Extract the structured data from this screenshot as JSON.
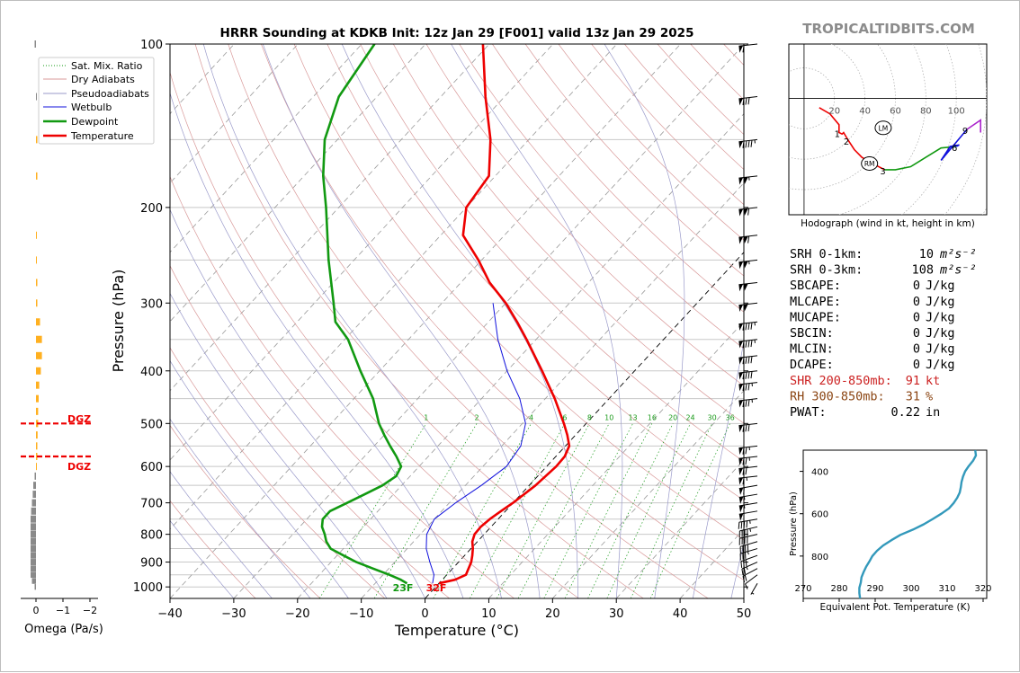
{
  "title": "HRRR Sounding at KDKB Init: 12z Jan 29 [F001] valid 13z Jan 29 2025",
  "watermark": "TROPICALTIDBITS.COM",
  "legend": [
    "Sat. Mix. Ratio",
    "Dry Adiabats",
    "Pseudoadiabats",
    "Wetbulb",
    "Dewpoint",
    "Temperature"
  ],
  "colors": {
    "temperature": "#ee0000",
    "dewpoint": "#119911",
    "wetbulb": "#1010dd",
    "omega_up": "#ffb020",
    "omega_down": "#8a8a8a",
    "theta_e": "#3399bb",
    "watermark": "#8c8c8c"
  },
  "surface_dewpoint_label": "23F",
  "surface_temp_label": "32F",
  "dgz_label": "DGZ",
  "omega_label": "Omega (Pa/s)",
  "omega_ticks": [
    "0",
    "−1",
    "−2"
  ],
  "hodograph": {
    "caption": "Hodograph (wind in kt, height in km)",
    "ring_labels": [
      "20",
      "40",
      "60",
      "80",
      "100"
    ],
    "height_labels": [
      "1",
      "2",
      "3",
      "6",
      "9"
    ],
    "lm_label": "LM",
    "rm_label": "RM"
  },
  "stats": [
    {
      "label": "SRH 0-1km:",
      "value": "10",
      "unit": "m²s⁻²",
      "color": "#000000"
    },
    {
      "label": "SRH 0-3km:",
      "value": "108",
      "unit": "m²s⁻²",
      "color": "#000000"
    },
    {
      "label": "SBCAPE:",
      "value": "0",
      "unit": "J/kg",
      "color": "#000000"
    },
    {
      "label": "MLCAPE:",
      "value": "0",
      "unit": "J/kg",
      "color": "#000000"
    },
    {
      "label": "MUCAPE:",
      "value": "0",
      "unit": "J/kg",
      "color": "#000000"
    },
    {
      "label": "SBCIN:",
      "value": "0",
      "unit": "J/kg",
      "color": "#000000"
    },
    {
      "label": "MLCIN:",
      "value": "0",
      "unit": "J/kg",
      "color": "#000000"
    },
    {
      "label": "DCAPE:",
      "value": "0",
      "unit": "J/kg",
      "color": "#000000"
    },
    {
      "label": "SHR 200-850mb:",
      "value": "91",
      "unit": "kt",
      "color": "#cc2222"
    },
    {
      "label": "RH 300-850mb:",
      "value": "31",
      "unit": "%",
      "color": "#8b4513"
    },
    {
      "label": "PWAT:",
      "value": "0.22",
      "unit": "in",
      "color": "#000000"
    }
  ],
  "chart_data": [
    {
      "type": "line",
      "name": "skew-t",
      "xlabel": "Temperature (°C)",
      "ylabel": "Pressure (hPa)",
      "xlim": [
        -40,
        50
      ],
      "ylim": [
        1050,
        100
      ],
      "x_ticks": [
        "−40",
        "−30",
        "−20",
        "−10",
        "0",
        "10",
        "20",
        "30",
        "40",
        "50"
      ],
      "y_ticks": [
        "100",
        "200",
        "300",
        "400",
        "500",
        "600",
        "700",
        "800",
        "900",
        "1000"
      ],
      "mixing_ratio_labels": [
        "1",
        "2",
        "4",
        "6",
        "8",
        "10",
        "13",
        "16",
        "20",
        "24",
        "30",
        "36"
      ],
      "series": [
        {
          "name": "Temperature",
          "p": [
            985,
            970,
            950,
            925,
            900,
            875,
            850,
            825,
            800,
            775,
            750,
            725,
            700,
            650,
            600,
            575,
            550,
            525,
            500,
            450,
            400,
            350,
            325,
            300,
            275,
            250,
            225,
            200,
            175,
            150,
            125,
            100
          ],
          "t": [
            0.0,
            2.0,
            3.0,
            2.5,
            2.0,
            1.2,
            0.3,
            -0.8,
            -1.5,
            -1.6,
            -1.3,
            -0.7,
            0.0,
            1.0,
            1.5,
            1.4,
            0.6,
            -1.3,
            -3.5,
            -8.5,
            -14.5,
            -21.5,
            -25.5,
            -30.0,
            -35.5,
            -40.5,
            -46.5,
            -50.0,
            -51.0,
            -56.0,
            -63.0,
            -71.0
          ]
        },
        {
          "name": "Dewpoint",
          "p": [
            985,
            970,
            950,
            925,
            900,
            875,
            850,
            825,
            800,
            775,
            750,
            725,
            700,
            675,
            650,
            625,
            600,
            575,
            550,
            525,
            500,
            450,
            400,
            350,
            325,
            300,
            250,
            200,
            175,
            150,
            125,
            100
          ],
          "t": [
            -5.0,
            -6.5,
            -9.0,
            -12.5,
            -16.0,
            -19.0,
            -22.0,
            -23.7,
            -25.0,
            -26.5,
            -27.5,
            -27.5,
            -26.0,
            -24.5,
            -23.0,
            -22.2,
            -22.8,
            -25.0,
            -27.5,
            -30.0,
            -32.5,
            -37.0,
            -43.0,
            -49.5,
            -54.0,
            -57.0,
            -64.0,
            -72.0,
            -77.0,
            -82.0,
            -86.0,
            -88.0
          ]
        },
        {
          "name": "Wetbulb",
          "p": [
            985,
            950,
            900,
            850,
            800,
            750,
            700,
            650,
            600,
            550,
            500,
            450,
            400,
            350,
            300
          ],
          "t": [
            -1.0,
            -2.0,
            -4.5,
            -7.0,
            -9.0,
            -10.0,
            -9.0,
            -7.5,
            -6.3,
            -7.0,
            -9.5,
            -14.0,
            -20.0,
            -26.0,
            -32.0
          ]
        }
      ],
      "wind_barbs": [
        {
          "p": 985,
          "dir": 200,
          "spd": 5
        },
        {
          "p": 950,
          "dir": 220,
          "spd": 10
        },
        {
          "p": 925,
          "dir": 230,
          "spd": 20
        },
        {
          "p": 900,
          "dir": 235,
          "spd": 25
        },
        {
          "p": 875,
          "dir": 240,
          "spd": 30
        },
        {
          "p": 850,
          "dir": 245,
          "spd": 35
        },
        {
          "p": 825,
          "dir": 245,
          "spd": 40
        },
        {
          "p": 800,
          "dir": 250,
          "spd": 40
        },
        {
          "p": 775,
          "dir": 250,
          "spd": 45
        },
        {
          "p": 750,
          "dir": 255,
          "spd": 45
        },
        {
          "p": 725,
          "dir": 255,
          "spd": 50
        },
        {
          "p": 700,
          "dir": 255,
          "spd": 55
        },
        {
          "p": 675,
          "dir": 255,
          "spd": 55
        },
        {
          "p": 650,
          "dir": 255,
          "spd": 60
        },
        {
          "p": 625,
          "dir": 260,
          "spd": 65
        },
        {
          "p": 600,
          "dir": 260,
          "spd": 70
        },
        {
          "p": 575,
          "dir": 260,
          "spd": 75
        },
        {
          "p": 550,
          "dir": 260,
          "spd": 75
        },
        {
          "p": 500,
          "dir": 260,
          "spd": 80
        },
        {
          "p": 450,
          "dir": 260,
          "spd": 85
        },
        {
          "p": 420,
          "dir": 260,
          "spd": 85
        },
        {
          "p": 400,
          "dir": 260,
          "spd": 90
        },
        {
          "p": 375,
          "dir": 260,
          "spd": 90
        },
        {
          "p": 350,
          "dir": 260,
          "spd": 95
        },
        {
          "p": 325,
          "dir": 260,
          "spd": 95
        },
        {
          "p": 300,
          "dir": 260,
          "spd": 100
        },
        {
          "p": 275,
          "dir": 260,
          "spd": 100
        },
        {
          "p": 250,
          "dir": 260,
          "spd": 105
        },
        {
          "p": 225,
          "dir": 260,
          "spd": 110
        },
        {
          "p": 200,
          "dir": 260,
          "spd": 110
        },
        {
          "p": 175,
          "dir": 260,
          "spd": 105
        },
        {
          "p": 150,
          "dir": 260,
          "spd": 95
        },
        {
          "p": 125,
          "dir": 260,
          "spd": 80
        },
        {
          "p": 100,
          "dir": 260,
          "spd": 60
        }
      ],
      "dgz": [
        500,
        575
      ]
    },
    {
      "type": "bar",
      "name": "omega",
      "xlabel": "Omega (Pa/s)",
      "xlim": [
        0.5,
        -2.3
      ],
      "p": [
        1000,
        975,
        950,
        925,
        900,
        875,
        850,
        825,
        800,
        775,
        750,
        725,
        700,
        675,
        650,
        625,
        600,
        575,
        550,
        525,
        500,
        475,
        450,
        425,
        400,
        375,
        350,
        325,
        300,
        275,
        250,
        225,
        175,
        150,
        125,
        100
      ],
      "values": [
        0.05,
        0.15,
        0.2,
        0.2,
        0.2,
        0.2,
        0.2,
        0.2,
        0.2,
        0.2,
        0.2,
        0.18,
        0.15,
        0.12,
        0.1,
        0.05,
        -0.03,
        -0.05,
        -0.05,
        -0.06,
        -0.08,
        -0.08,
        -0.1,
        -0.12,
        -0.18,
        -0.22,
        -0.22,
        -0.15,
        -0.05,
        -0.05,
        -0.03,
        -0.02,
        -0.05,
        -0.05,
        0.0,
        0.05
      ]
    },
    {
      "type": "line",
      "name": "hodograph",
      "xlim": [
        -10,
        120
      ],
      "ylim": [
        -75,
        35
      ],
      "u": [
        10,
        17,
        23,
        23,
        25,
        26,
        29,
        33,
        38,
        45,
        53,
        60,
        70,
        80,
        90,
        100,
        102,
        96,
        90,
        107,
        116,
        116
      ],
      "v": [
        -6,
        -10,
        -17,
        -22,
        -23,
        -22,
        -27,
        -33,
        -38,
        -42,
        -46,
        -46,
        -44,
        -38,
        -32,
        -31,
        -30,
        -31,
        -40,
        -20,
        -14,
        -22
      ],
      "segment_breaks": [
        6,
        10,
        15,
        19
      ],
      "lm": [
        52,
        -19
      ],
      "rm": [
        43,
        -42
      ]
    },
    {
      "type": "line",
      "name": "theta-e",
      "xlabel": "Equivalent Pot. Temperature (K)",
      "ylabel": "Pressure (hPa)",
      "xlim": [
        270,
        321
      ],
      "ylim": [
        1000,
        300
      ],
      "x_ticks": [
        "270",
        "280",
        "290",
        "300",
        "310",
        "320"
      ],
      "y_ticks": [
        "400",
        "600",
        "800"
      ],
      "p": [
        1000,
        975,
        950,
        925,
        900,
        875,
        850,
        825,
        800,
        775,
        750,
        725,
        700,
        675,
        650,
        625,
        600,
        575,
        550,
        525,
        500,
        475,
        450,
        425,
        400,
        375,
        350,
        325,
        300
      ],
      "theta_e": [
        285.8,
        285.6,
        285.6,
        286.0,
        286.2,
        286.8,
        287.5,
        288.4,
        289.2,
        290.5,
        292.2,
        294.5,
        297.0,
        300.5,
        303.5,
        306.0,
        308.4,
        310.5,
        311.8,
        312.8,
        313.5,
        313.8,
        314.0,
        314.4,
        315.0,
        316.0,
        317.2,
        318.0,
        317.8
      ]
    }
  ]
}
